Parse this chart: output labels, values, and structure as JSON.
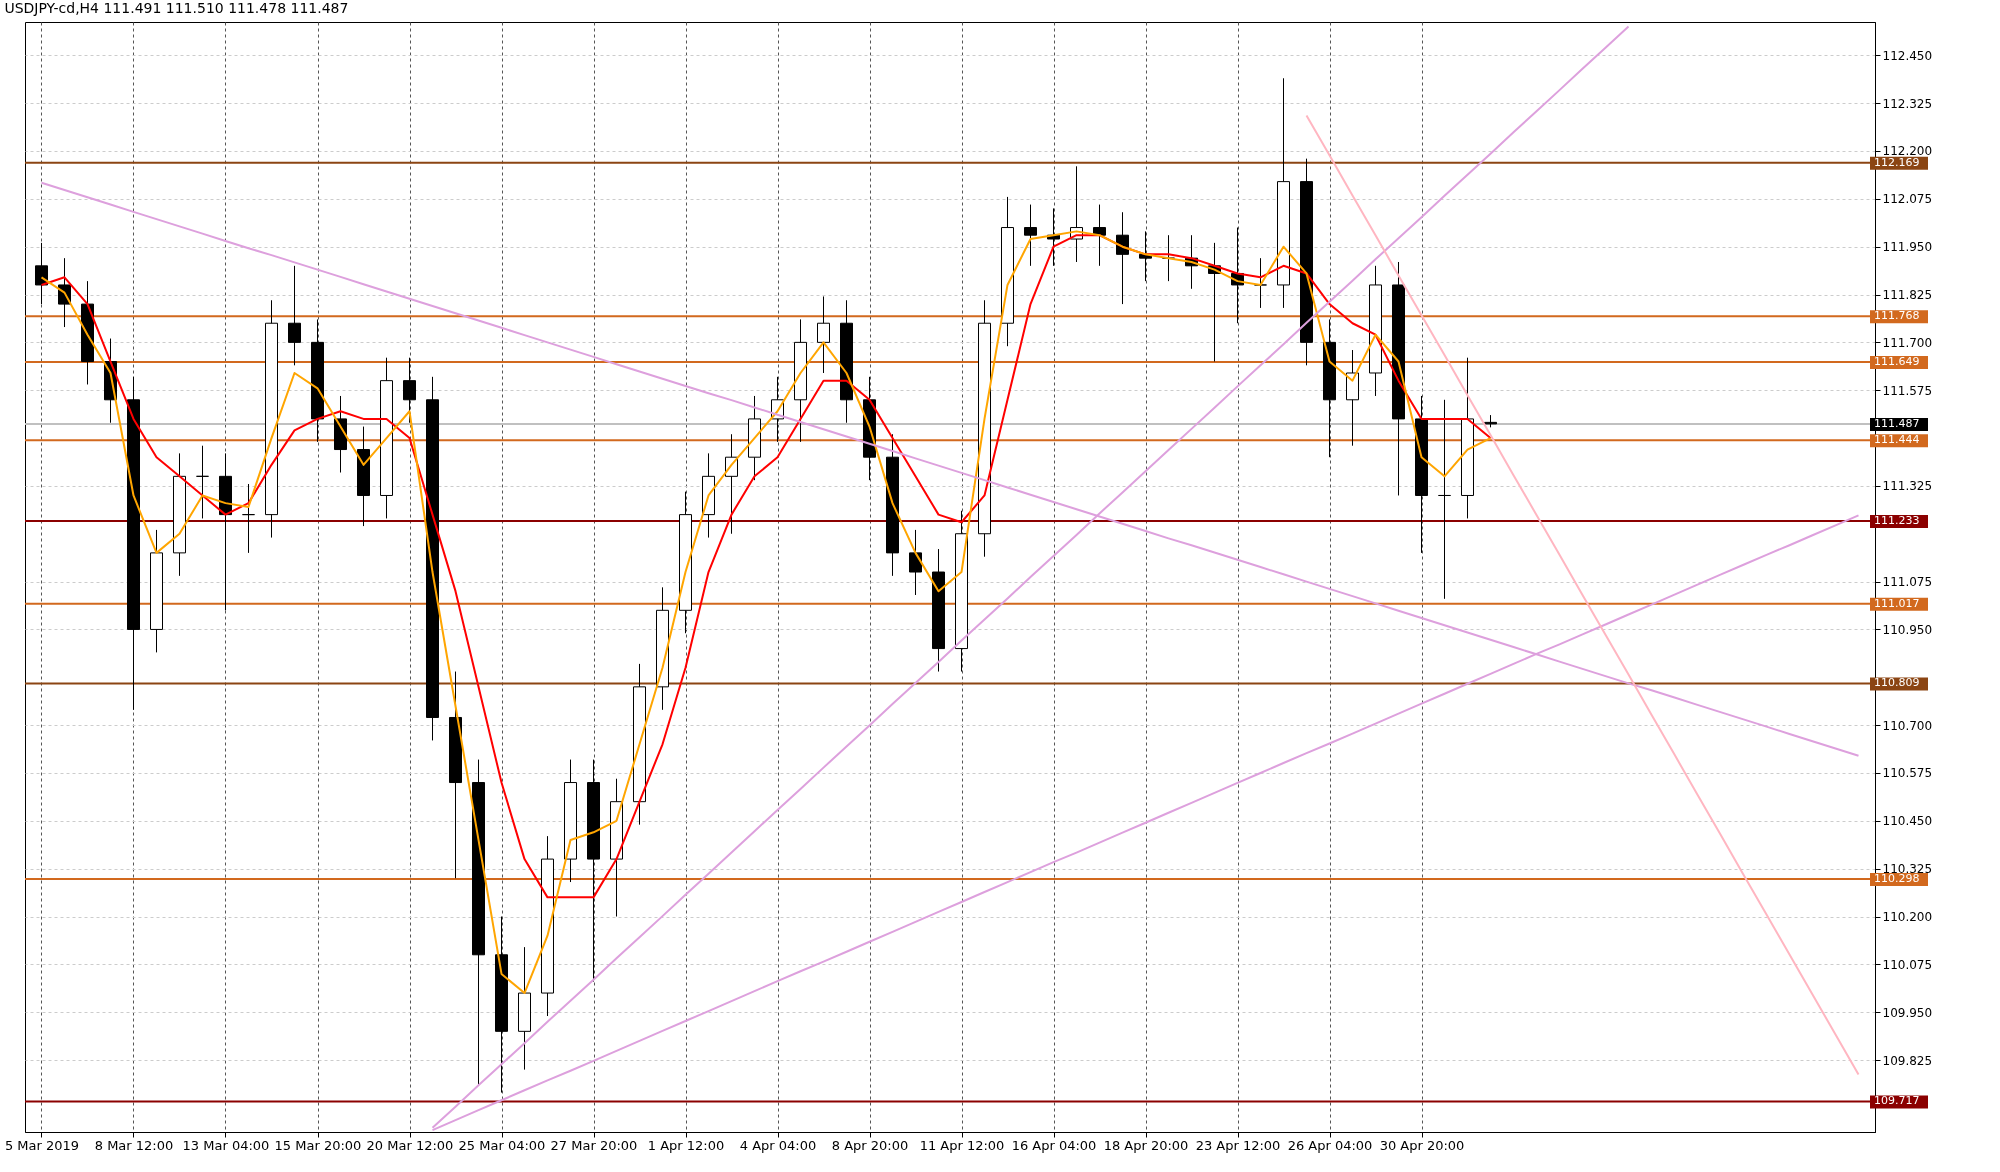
{
  "chart_data": {
    "type": "candlestick",
    "title": "USDJPY-cd,H4  111.491 111.510 111.478 111.487",
    "categories": [
      "5 Mar 2019",
      null,
      null,
      null,
      "8 Mar 12:00",
      null,
      null,
      null,
      "13 Mar 04:00",
      null,
      null,
      null,
      "15 Mar 20:00",
      null,
      null,
      null,
      "20 Mar 12:00",
      null,
      null,
      null,
      "25 Mar 04:00",
      null,
      null,
      null,
      "27 Mar 20:00",
      null,
      null,
      null,
      "1 Apr 12:00",
      null,
      null,
      null,
      "4 Apr 04:00",
      null,
      null,
      null,
      "8 Apr 20:00",
      null,
      null,
      null,
      "11 Apr 12:00",
      null,
      null,
      null,
      "16 Apr 04:00",
      null,
      null,
      null,
      "18 Apr 20:00",
      null,
      null,
      null,
      "23 Apr 12:00",
      null,
      null,
      null,
      "26 Apr 04:00",
      null,
      null,
      null,
      "30 Apr 20:00",
      null,
      null,
      null,
      null,
      null,
      null,
      null,
      null,
      null,
      null,
      null,
      null,
      null,
      null,
      null,
      null,
      null,
      null,
      null
    ],
    "ohlc": [
      [
        111.9,
        111.96,
        111.8,
        111.85
      ],
      [
        111.85,
        111.92,
        111.74,
        111.8
      ],
      [
        111.8,
        111.86,
        111.59,
        111.65
      ],
      [
        111.65,
        111.71,
        111.49,
        111.55
      ],
      [
        111.55,
        111.61,
        110.74,
        110.95
      ],
      [
        110.95,
        111.21,
        110.89,
        111.15
      ],
      [
        111.15,
        111.41,
        111.09,
        111.35
      ],
      [
        111.35,
        111.43,
        111.24,
        111.35
      ],
      [
        111.35,
        111.41,
        111.0,
        111.25
      ],
      [
        111.25,
        111.33,
        111.15,
        111.25
      ],
      [
        111.25,
        111.81,
        111.19,
        111.75
      ],
      [
        111.75,
        111.9,
        111.64,
        111.7
      ],
      [
        111.7,
        111.76,
        111.44,
        111.5
      ],
      [
        111.5,
        111.56,
        111.36,
        111.42
      ],
      [
        111.42,
        111.48,
        111.22,
        111.3
      ],
      [
        111.3,
        111.66,
        111.24,
        111.6
      ],
      [
        111.6,
        111.66,
        111.49,
        111.55
      ],
      [
        111.55,
        111.61,
        110.66,
        110.72
      ],
      [
        110.72,
        110.84,
        110.3,
        110.55
      ],
      [
        110.55,
        110.61,
        109.76,
        110.1
      ],
      [
        110.1,
        110.2,
        109.74,
        109.9
      ],
      [
        109.9,
        110.12,
        109.8,
        110.0
      ],
      [
        110.0,
        110.41,
        109.94,
        110.35
      ],
      [
        110.35,
        110.61,
        110.29,
        110.55
      ],
      [
        110.55,
        110.61,
        110.03,
        110.35
      ],
      [
        110.35,
        110.56,
        110.2,
        110.5
      ],
      [
        110.5,
        110.86,
        110.44,
        110.8
      ],
      [
        110.8,
        111.06,
        110.74,
        111.0
      ],
      [
        111.0,
        111.31,
        110.94,
        111.25
      ],
      [
        111.25,
        111.41,
        111.19,
        111.35
      ],
      [
        111.35,
        111.46,
        111.2,
        111.4
      ],
      [
        111.4,
        111.56,
        111.34,
        111.5
      ],
      [
        111.5,
        111.61,
        111.44,
        111.55
      ],
      [
        111.55,
        111.76,
        111.44,
        111.7
      ],
      [
        111.7,
        111.82,
        111.62,
        111.75
      ],
      [
        111.75,
        111.81,
        111.49,
        111.55
      ],
      [
        111.55,
        111.61,
        111.34,
        111.4
      ],
      [
        111.4,
        111.46,
        111.09,
        111.15
      ],
      [
        111.15,
        111.21,
        111.04,
        111.1
      ],
      [
        111.1,
        111.16,
        110.84,
        110.9
      ],
      [
        110.9,
        111.26,
        110.84,
        111.2
      ],
      [
        111.2,
        111.81,
        111.14,
        111.75
      ],
      [
        111.75,
        112.08,
        111.69,
        112.0
      ],
      [
        112.0,
        112.06,
        111.9,
        111.98
      ],
      [
        111.98,
        112.05,
        111.9,
        111.97
      ],
      [
        111.97,
        112.16,
        111.91,
        112.0
      ],
      [
        112.0,
        112.06,
        111.9,
        111.98
      ],
      [
        111.98,
        112.04,
        111.8,
        111.93
      ],
      [
        111.93,
        111.99,
        111.86,
        111.92
      ],
      [
        111.92,
        111.98,
        111.86,
        111.92
      ],
      [
        111.92,
        111.98,
        111.84,
        111.9
      ],
      [
        111.9,
        111.96,
        111.65,
        111.88
      ],
      [
        111.88,
        112.0,
        111.75,
        111.85
      ],
      [
        111.85,
        111.92,
        111.79,
        111.85
      ],
      [
        111.85,
        112.39,
        111.79,
        112.12
      ],
      [
        112.12,
        112.18,
        111.64,
        111.7
      ],
      [
        111.7,
        111.76,
        111.4,
        111.55
      ],
      [
        111.55,
        111.68,
        111.43,
        111.62
      ],
      [
        111.62,
        111.9,
        111.56,
        111.85
      ],
      [
        111.85,
        111.91,
        111.3,
        111.5
      ],
      [
        111.5,
        111.56,
        111.15,
        111.3
      ],
      [
        111.3,
        111.55,
        111.03,
        111.3
      ],
      [
        111.3,
        111.66,
        111.24,
        111.5
      ],
      [
        111.491,
        111.51,
        111.478,
        111.487
      ],
      null,
      null,
      null,
      null,
      null,
      null,
      null,
      null,
      null,
      null,
      null,
      null,
      null,
      null,
      null,
      null
    ],
    "series": [
      {
        "type": "line",
        "color": "#ff0000",
        "values": [
          111.85,
          111.87,
          111.8,
          111.65,
          111.5,
          111.4,
          111.35,
          111.3,
          111.25,
          111.28,
          111.38,
          111.47,
          111.5,
          111.52,
          111.5,
          111.5,
          111.45,
          111.25,
          111.05,
          110.8,
          110.55,
          110.35,
          110.25,
          110.25,
          110.25,
          110.35,
          110.5,
          110.65,
          110.85,
          111.1,
          111.25,
          111.35,
          111.4,
          111.5,
          111.6,
          111.6,
          111.55,
          111.45,
          111.35,
          111.25,
          111.23,
          111.3,
          111.55,
          111.8,
          111.95,
          111.98,
          111.98,
          111.95,
          111.93,
          111.93,
          111.92,
          111.9,
          111.88,
          111.87,
          111.9,
          111.88,
          111.8,
          111.75,
          111.72,
          111.6,
          111.5,
          111.5,
          111.5,
          111.45,
          null,
          null,
          null,
          null,
          null,
          null,
          null,
          null,
          null,
          null,
          null,
          null,
          null,
          null,
          null,
          null
        ]
      },
      {
        "type": "line",
        "color": "#ffa500",
        "values": [
          111.87,
          111.83,
          111.72,
          111.62,
          111.3,
          111.15,
          111.2,
          111.3,
          111.28,
          111.27,
          111.45,
          111.62,
          111.58,
          111.48,
          111.38,
          111.45,
          111.52,
          111.1,
          110.75,
          110.4,
          110.05,
          110.0,
          110.15,
          110.4,
          110.42,
          110.45,
          110.65,
          110.85,
          111.1,
          111.3,
          111.38,
          111.45,
          111.52,
          111.62,
          111.7,
          111.62,
          111.48,
          111.28,
          111.15,
          111.05,
          111.1,
          111.5,
          111.85,
          111.97,
          111.98,
          111.99,
          111.98,
          111.95,
          111.93,
          111.92,
          111.91,
          111.89,
          111.86,
          111.85,
          111.95,
          111.88,
          111.65,
          111.6,
          111.72,
          111.65,
          111.4,
          111.35,
          111.42,
          111.45,
          null,
          null,
          null,
          null,
          null,
          null,
          null,
          null,
          null,
          null,
          null,
          null,
          null,
          null,
          null,
          null
        ]
      },
      {
        "type": "line",
        "color": "#dda0dd",
        "values": [
          112.117,
          112.098,
          112.079,
          112.06,
          112.041,
          112.022,
          112.003,
          111.984,
          111.965,
          111.946,
          111.928,
          111.909,
          111.89,
          111.871,
          111.852,
          111.833,
          111.814,
          111.795,
          111.776,
          111.757,
          111.738,
          111.719,
          111.7,
          111.681,
          111.662,
          111.643,
          111.624,
          111.605,
          111.586,
          111.567,
          111.549,
          111.53,
          111.511,
          111.492,
          111.473,
          111.454,
          111.435,
          111.416,
          111.397,
          111.378,
          111.359,
          111.34,
          111.321,
          111.302,
          111.283,
          111.264,
          111.245,
          111.226,
          111.207,
          111.188,
          111.17,
          111.151,
          111.132,
          111.113,
          111.094,
          111.075,
          111.056,
          111.037,
          111.018,
          110.999,
          110.98,
          110.961,
          110.942,
          110.923,
          110.904,
          110.885,
          110.866,
          110.847,
          110.828,
          110.809,
          110.791,
          110.772,
          110.753,
          110.734,
          110.715,
          110.696,
          110.677,
          110.658,
          110.639,
          110.62
        ]
      },
      {
        "type": "line",
        "color": "#dda0dd",
        "values": [
          null,
          null,
          null,
          null,
          null,
          null,
          null,
          null,
          null,
          null,
          null,
          null,
          null,
          null,
          null,
          null,
          null,
          109.648,
          109.703,
          109.759,
          109.814,
          109.869,
          109.925,
          109.98,
          110.035,
          110.091,
          110.146,
          110.201,
          110.257,
          110.312,
          110.367,
          110.423,
          110.478,
          110.533,
          110.589,
          110.644,
          110.699,
          110.755,
          110.81,
          110.865,
          110.921,
          110.976,
          111.031,
          111.087,
          111.142,
          111.197,
          111.253,
          111.308,
          111.363,
          111.419,
          111.474,
          111.529,
          111.585,
          111.64,
          111.695,
          111.751,
          111.806,
          111.861,
          111.917,
          111.972,
          112.027,
          112.083,
          112.138,
          112.193,
          112.249,
          112.304,
          112.359,
          112.415,
          112.47,
          112.525,
          null,
          null,
          null,
          null,
          null,
          null,
          null,
          null,
          null,
          null
        ]
      },
      {
        "type": "line",
        "color": "#dda0dd",
        "values": [
          null,
          null,
          null,
          null,
          null,
          null,
          null,
          null,
          null,
          null,
          null,
          null,
          null,
          null,
          null,
          null,
          null,
          109.642,
          109.668,
          109.694,
          109.72,
          109.746,
          109.772,
          109.797,
          109.823,
          109.849,
          109.875,
          109.901,
          109.927,
          109.953,
          109.979,
          110.005,
          110.031,
          110.057,
          110.082,
          110.108,
          110.134,
          110.16,
          110.186,
          110.212,
          110.238,
          110.264,
          110.29,
          110.316,
          110.342,
          110.367,
          110.393,
          110.419,
          110.445,
          110.471,
          110.497,
          110.523,
          110.549,
          110.575,
          110.601,
          110.627,
          110.652,
          110.678,
          110.704,
          110.73,
          110.756,
          110.782,
          110.808,
          110.834,
          110.86,
          110.886,
          110.911,
          110.937,
          110.963,
          110.989,
          111.015,
          111.041,
          111.067,
          111.093,
          111.119,
          111.145,
          111.17,
          111.196,
          111.222,
          111.248
        ]
      },
      {
        "type": "line",
        "color": "#ffb6c1",
        "values": [
          null,
          null,
          null,
          null,
          null,
          null,
          null,
          null,
          null,
          null,
          null,
          null,
          null,
          null,
          null,
          null,
          null,
          null,
          null,
          null,
          null,
          null,
          null,
          null,
          null,
          null,
          null,
          null,
          null,
          null,
          null,
          null,
          null,
          null,
          null,
          null,
          null,
          null,
          null,
          null,
          null,
          null,
          null,
          null,
          null,
          null,
          null,
          null,
          null,
          null,
          null,
          null,
          null,
          null,
          null,
          112.293,
          112.189,
          112.084,
          111.98,
          111.875,
          111.771,
          111.667,
          111.562,
          111.458,
          111.353,
          111.249,
          111.145,
          111.04,
          110.936,
          110.832,
          110.727,
          110.623,
          110.518,
          110.414,
          110.309,
          110.205,
          110.101,
          109.996,
          109.892,
          109.787
        ]
      }
    ],
    "ylim": [
      109.637,
      112.537
    ],
    "yticks": [
      {
        "value": 109.825,
        "label": "109.825"
      },
      {
        "value": 109.95,
        "label": "109.950"
      },
      {
        "value": 110.075,
        "label": "110.075"
      },
      {
        "value": 110.2,
        "label": "110.200"
      },
      {
        "value": 110.325,
        "label": "110.325"
      },
      {
        "value": 110.45,
        "label": "110.450"
      },
      {
        "value": 110.575,
        "label": "110.575"
      },
      {
        "value": 110.7,
        "label": "110.700"
      },
      {
        "value": 110.95,
        "label": "110.950"
      },
      {
        "value": 111.075,
        "label": "111.075"
      },
      {
        "value": 111.325,
        "label": "111.325"
      },
      {
        "value": 111.575,
        "label": "111.575"
      },
      {
        "value": 111.7,
        "label": "111.700"
      },
      {
        "value": 111.825,
        "label": "111.825"
      },
      {
        "value": 111.95,
        "label": "111.950"
      },
      {
        "value": 112.075,
        "label": "112.075"
      },
      {
        "value": 112.2,
        "label": "112.200"
      },
      {
        "value": 112.325,
        "label": "112.325"
      },
      {
        "value": 112.45,
        "label": "112.450"
      }
    ],
    "ref_lines": [
      {
        "axis": "y",
        "value": 112.169,
        "label": "112.169",
        "color": "#8b4513"
      },
      {
        "axis": "y",
        "value": 111.768,
        "label": "111.768",
        "color": "#d2691e"
      },
      {
        "axis": "y",
        "value": 111.649,
        "label": "111.649",
        "color": "#d2691e"
      },
      {
        "axis": "y",
        "value": 111.487,
        "label": "111.487",
        "color": "#c0c0c0"
      },
      {
        "axis": "y",
        "value": 111.444,
        "label": "111.444",
        "color": "#d2691e"
      },
      {
        "axis": "y",
        "value": 111.233,
        "label": "111.233",
        "color": "#8b0000"
      },
      {
        "axis": "y",
        "value": 111.017,
        "label": "111.017",
        "color": "#d2691e"
      },
      {
        "axis": "y",
        "value": 110.809,
        "label": "110.809",
        "color": "#8b4513"
      },
      {
        "axis": "y",
        "value": 110.298,
        "label": "110.298",
        "color": "#d2691e"
      },
      {
        "axis": "y",
        "value": 109.717,
        "label": "109.717",
        "color": "#8b0000"
      }
    ],
    "grid": true
  }
}
